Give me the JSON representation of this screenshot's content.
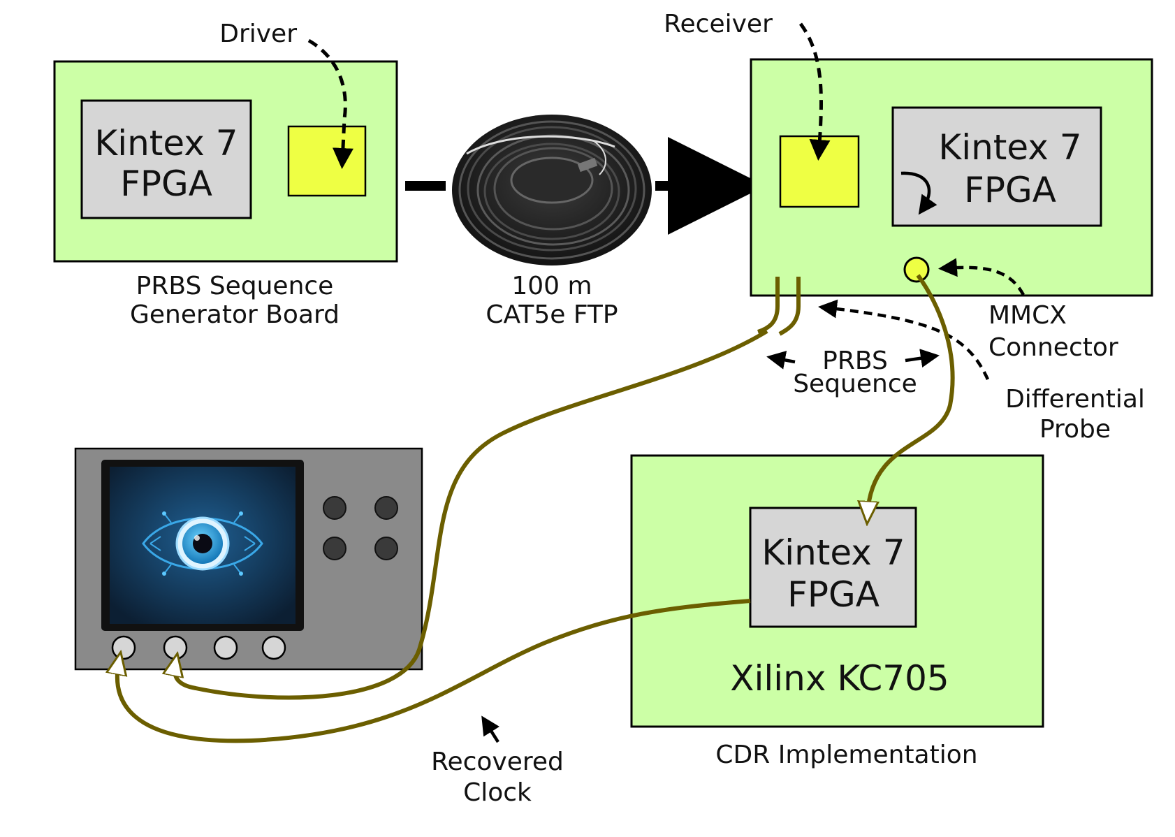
{
  "colors": {
    "board_fill": "#ccffa6",
    "fpga_fill": "#d6d6d6",
    "chip_fill": "#eeff44",
    "cable": "#6b5e00",
    "scope_body": "#8a8a8a"
  },
  "tx_board": {
    "fpga_line1": "Kintex 7",
    "fpga_line2": "FPGA",
    "caption_line1": "PRBS Sequence",
    "caption_line2": "Generator Board",
    "driver_label": "Driver"
  },
  "cable": {
    "caption_line1": "100 m",
    "caption_line2": "CAT5e FTP"
  },
  "rx_board": {
    "fpga_line1": "Kintex 7",
    "fpga_line2": "FPGA",
    "receiver_label": "Receiver",
    "mmcx_line1": "MMCX",
    "mmcx_line2": "Connector"
  },
  "annotations": {
    "prbs_line1": "PRBS",
    "prbs_line2": "Sequence",
    "diff_line1": "Differential",
    "diff_line2": "Probe",
    "clock_line1": "Recovered",
    "clock_line2": "Clock"
  },
  "cdr_board": {
    "fpga_line1": "Kintex 7",
    "fpga_line2": "FPGA",
    "board_name": "Xilinx KC705",
    "caption": "CDR Implementation"
  },
  "icons": [
    "cable-coil-icon",
    "eye-circuit-icon",
    "oscilloscope-icon"
  ]
}
